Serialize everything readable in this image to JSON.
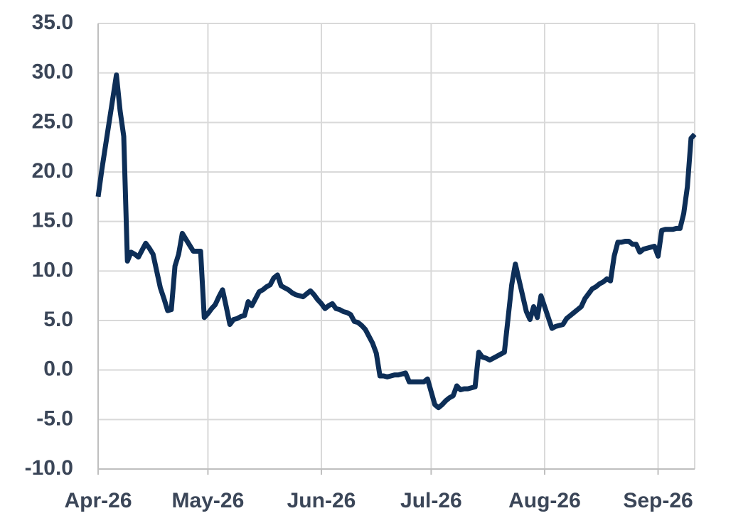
{
  "chart_data": {
    "type": "line",
    "categories": [
      "Apr-26",
      null,
      null,
      null,
      null,
      null,
      null,
      null,
      null,
      null,
      null,
      null,
      null,
      null,
      null,
      null,
      null,
      null,
      null,
      null,
      null,
      null,
      null,
      null,
      null,
      null,
      null,
      null,
      null,
      null,
      "May-26",
      null,
      null,
      null,
      null,
      null,
      null,
      null,
      null,
      null,
      null,
      null,
      null,
      null,
      null,
      null,
      null,
      null,
      null,
      null,
      null,
      null,
      null,
      null,
      null,
      null,
      null,
      null,
      null,
      null,
      null,
      "Jun-26",
      null,
      null,
      null,
      null,
      null,
      null,
      null,
      null,
      null,
      null,
      null,
      null,
      null,
      null,
      null,
      null,
      null,
      null,
      null,
      null,
      null,
      null,
      null,
      null,
      null,
      null,
      null,
      null,
      null,
      "Jul-26",
      null,
      null,
      null,
      null,
      null,
      null,
      null,
      null,
      null,
      null,
      null,
      null,
      null,
      null,
      null,
      null,
      null,
      null,
      null,
      null,
      null,
      null,
      null,
      null,
      null,
      null,
      null,
      null,
      null,
      null,
      "Aug-26",
      null,
      null,
      null,
      null,
      null,
      null,
      null,
      null,
      null,
      null,
      null,
      null,
      null,
      null,
      null,
      null,
      null,
      null,
      null,
      null,
      null,
      null,
      null,
      null,
      null,
      null,
      null,
      null,
      null,
      null,
      "Sep-26",
      null,
      null,
      null,
      null,
      null,
      null,
      null,
      null,
      null,
      null
    ],
    "series": [
      {
        "color": "#0d2e57",
        "values": [
          17.5,
          20.2,
          22.6,
          25.0,
          27.4,
          29.8,
          26.2,
          23.6,
          11.0,
          11.9,
          11.7,
          11.4,
          12.1,
          12.8,
          12.3,
          11.7,
          10.0,
          8.3,
          7.2,
          6.0,
          6.1,
          10.5,
          11.7,
          13.8,
          13.2,
          12.6,
          12.0,
          12.0,
          12.0,
          5.3,
          5.7,
          6.2,
          6.6,
          7.4,
          8.1,
          6.4,
          4.6,
          5.1,
          5.2,
          5.4,
          5.5,
          6.9,
          6.5,
          7.2,
          7.9,
          8.1,
          8.4,
          8.6,
          9.3,
          9.6,
          8.5,
          8.3,
          8.1,
          7.8,
          7.6,
          7.5,
          7.4,
          7.7,
          8.0,
          7.6,
          7.1,
          6.7,
          6.2,
          6.5,
          6.7,
          6.2,
          6.1,
          5.9,
          5.8,
          5.6,
          4.9,
          4.8,
          4.5,
          4.1,
          3.4,
          2.7,
          1.7,
          -0.6,
          -0.6,
          -0.7,
          -0.6,
          -0.5,
          -0.5,
          -0.4,
          -0.3,
          -1.2,
          -1.2,
          -1.2,
          -1.2,
          -1.2,
          -0.9,
          -2.2,
          -3.5,
          -3.8,
          -3.5,
          -3.1,
          -2.8,
          -2.6,
          -1.6,
          -2.0,
          -1.9,
          -1.9,
          -1.8,
          -1.7,
          1.8,
          1.3,
          1.2,
          1.0,
          1.2,
          1.4,
          1.6,
          1.8,
          5.2,
          8.6,
          10.7,
          9.1,
          7.5,
          5.9,
          5.1,
          6.4,
          5.3,
          7.5,
          6.4,
          5.3,
          4.2,
          4.4,
          4.5,
          4.6,
          5.2,
          5.5,
          5.8,
          6.1,
          6.4,
          7.2,
          7.7,
          8.2,
          8.4,
          8.7,
          8.9,
          9.2,
          9.0,
          11.5,
          12.9,
          12.9,
          13.0,
          13.0,
          12.7,
          12.7,
          11.9,
          12.2,
          12.3,
          12.4,
          12.5,
          11.5,
          14.1,
          14.2,
          14.2,
          14.2,
          14.3,
          14.3,
          15.8,
          18.5,
          23.4,
          23.8
        ]
      }
    ],
    "ylim": [
      -10,
      35
    ],
    "yticks": [
      {
        "value": -10,
        "label": "-10.0"
      },
      {
        "value": -5,
        "label": "-5.0"
      },
      {
        "value": 0,
        "label": "0.0"
      },
      {
        "value": 5,
        "label": "5.0"
      },
      {
        "value": 10,
        "label": "10.0"
      },
      {
        "value": 15,
        "label": "15.0"
      },
      {
        "value": 20,
        "label": "20.0"
      },
      {
        "value": 25,
        "label": "25.0"
      },
      {
        "value": 30,
        "label": "30.0"
      },
      {
        "value": 35,
        "label": "35.0"
      }
    ],
    "grid": true
  }
}
